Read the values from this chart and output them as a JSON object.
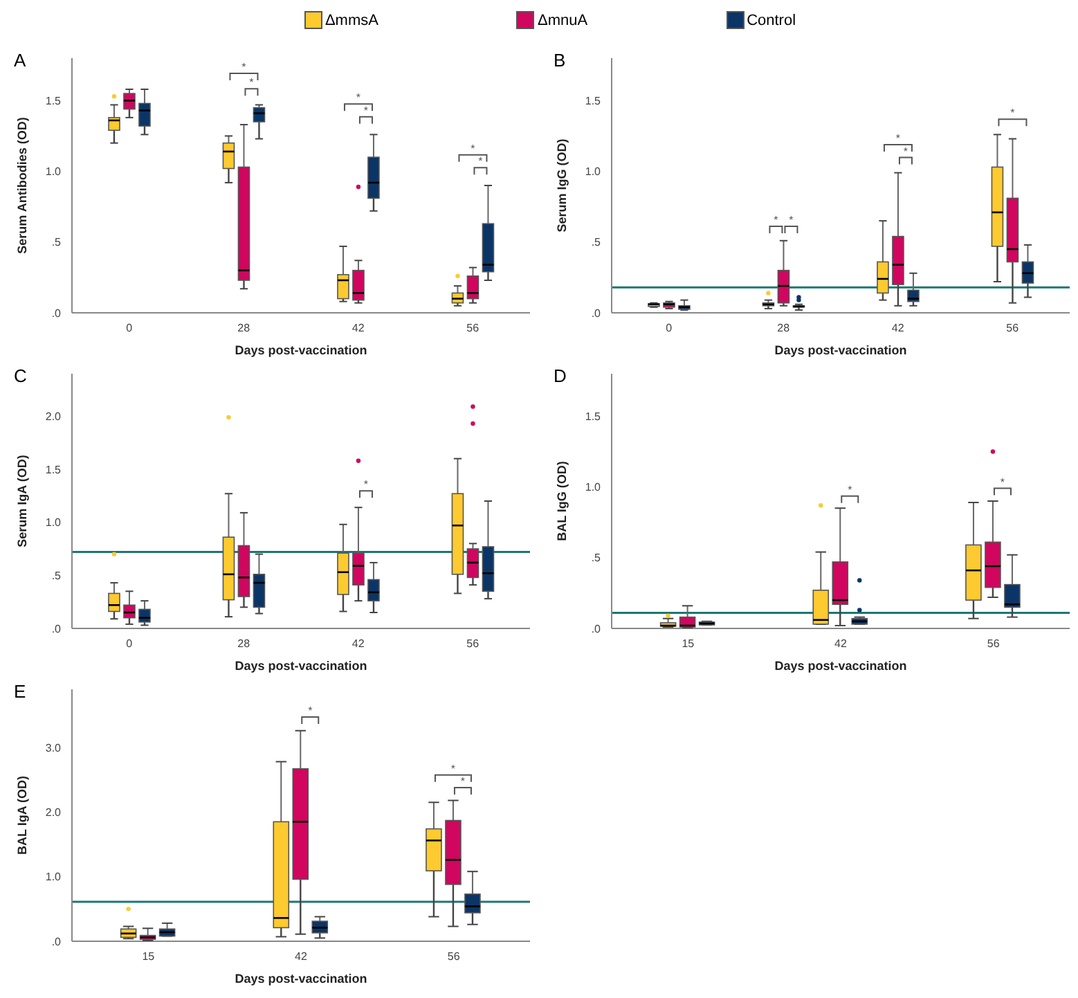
{
  "chart_data": [
    {
      "type": "box",
      "title": "A",
      "xlabel": "Days post-vaccination",
      "ylabel": "Serum Antibodies (OD)",
      "categories": [
        "0",
        "28",
        "42",
        "56"
      ],
      "ylim": [
        0,
        1.8
      ],
      "yticks": [
        {
          "value": 0,
          "label": ".0"
        },
        {
          "value": 0.5,
          "label": ".5"
        },
        {
          "value": 1,
          "label": "1.0"
        },
        {
          "value": 1.5,
          "label": "1.5"
        }
      ],
      "legend": "top",
      "series": [
        {
          "name": "ΔmmsA",
          "color": "#fdca2f",
          "boxes": [
            {
              "low": 1.2,
              "q1": 1.29,
              "median": 1.36,
              "q3": 1.38,
              "high": 1.47,
              "outliers": [
                1.53
              ]
            },
            {
              "low": 0.92,
              "q1": 1.02,
              "median": 1.14,
              "q3": 1.2,
              "high": 1.25
            },
            {
              "low": 0.08,
              "q1": 0.1,
              "median": 0.23,
              "q3": 0.27,
              "high": 0.47
            },
            {
              "low": 0.05,
              "q1": 0.07,
              "median": 0.1,
              "q3": 0.14,
              "high": 0.19,
              "outliers": [
                0.26
              ]
            }
          ]
        },
        {
          "name": "ΔmnuA",
          "color": "#d0065f",
          "boxes": [
            {
              "low": 1.38,
              "q1": 1.44,
              "median": 1.5,
              "q3": 1.55,
              "high": 1.58
            },
            {
              "low": 0.17,
              "q1": 0.23,
              "median": 0.3,
              "q3": 1.03,
              "high": 1.33
            },
            {
              "low": 0.07,
              "q1": 0.09,
              "median": 0.14,
              "q3": 0.3,
              "high": 0.37,
              "outliers": [
                0.89
              ]
            },
            {
              "low": 0.07,
              "q1": 0.1,
              "median": 0.14,
              "q3": 0.26,
              "high": 0.32
            }
          ]
        },
        {
          "name": "Control",
          "color": "#0b3566",
          "boxes": [
            {
              "low": 1.26,
              "q1": 1.32,
              "median": 1.43,
              "q3": 1.48,
              "high": 1.58
            },
            {
              "low": 1.23,
              "q1": 1.35,
              "median": 1.41,
              "q3": 1.45,
              "high": 1.47
            },
            {
              "low": 0.72,
              "q1": 0.81,
              "median": 0.92,
              "q3": 1.1,
              "high": 1.26
            },
            {
              "low": 0.23,
              "q1": 0.29,
              "median": 0.34,
              "q3": 0.63,
              "high": 0.9
            }
          ]
        }
      ],
      "annotations": [
        "*",
        "*",
        "*",
        "*",
        "*",
        "*"
      ]
    },
    {
      "type": "box",
      "title": "B",
      "xlabel": "Days post-vaccination",
      "ylabel": "Serum IgG (OD)",
      "categories": [
        "0",
        "28",
        "42",
        "56"
      ],
      "ylim": [
        0,
        1.8
      ],
      "yticks": [
        {
          "value": 0,
          "label": ".0"
        },
        {
          "value": 0.5,
          "label": ".5"
        },
        {
          "value": 1,
          "label": "1.0"
        },
        {
          "value": 1.5,
          "label": "1.5"
        }
      ],
      "series": [
        {
          "color": "#fdca2f",
          "boxes": [
            {
              "low": 0.04,
              "q1": 0.045,
              "median": 0.06,
              "q3": 0.065,
              "high": 0.07
            },
            {
              "low": 0.03,
              "q1": 0.05,
              "median": 0.06,
              "q3": 0.07,
              "high": 0.09,
              "outliers": [
                0.14
              ]
            },
            {
              "low": 0.09,
              "q1": 0.14,
              "median": 0.24,
              "q3": 0.36,
              "high": 0.65
            },
            {
              "low": 0.22,
              "q1": 0.47,
              "median": 0.71,
              "q3": 1.03,
              "high": 1.26
            }
          ]
        },
        {
          "color": "#d0065f",
          "boxes": [
            {
              "low": 0.03,
              "q1": 0.04,
              "median": 0.06,
              "q3": 0.07,
              "high": 0.08
            },
            {
              "low": 0.05,
              "q1": 0.07,
              "median": 0.19,
              "q3": 0.3,
              "high": 0.51
            },
            {
              "low": 0.05,
              "q1": 0.2,
              "median": 0.34,
              "q3": 0.54,
              "high": 0.99
            },
            {
              "low": 0.07,
              "q1": 0.36,
              "median": 0.45,
              "q3": 0.81,
              "high": 1.23
            }
          ]
        },
        {
          "color": "#0b3566",
          "boxes": [
            {
              "low": 0.02,
              "q1": 0.025,
              "median": 0.04,
              "q3": 0.05,
              "high": 0.09
            },
            {
              "low": 0.02,
              "q1": 0.04,
              "median": 0.045,
              "q3": 0.05,
              "high": 0.06,
              "outliers": [
                0.09,
                0.11
              ]
            },
            {
              "low": 0.05,
              "q1": 0.08,
              "median": 0.1,
              "q3": 0.16,
              "high": 0.28
            },
            {
              "low": 0.11,
              "q1": 0.21,
              "median": 0.28,
              "q3": 0.36,
              "high": 0.48
            }
          ]
        }
      ],
      "ref_lines": [
        {
          "axis": "y",
          "value": 0.18,
          "color": "#1b7873"
        }
      ],
      "annotations": [
        "*",
        "*",
        "*",
        "*",
        "*"
      ]
    },
    {
      "type": "box",
      "title": "C",
      "xlabel": "Days post-vaccination",
      "ylabel": "Serum IgA (OD)",
      "categories": [
        "0",
        "28",
        "42",
        "56"
      ],
      "ylim": [
        0,
        2.4
      ],
      "yticks": [
        {
          "value": 0,
          "label": ".0"
        },
        {
          "value": 0.5,
          "label": ".5"
        },
        {
          "value": 1,
          "label": "1.0"
        },
        {
          "value": 1.5,
          "label": "1.5"
        },
        {
          "value": 2,
          "label": "2.0"
        }
      ],
      "series": [
        {
          "color": "#fdca2f",
          "boxes": [
            {
              "low": 0.09,
              "q1": 0.16,
              "median": 0.22,
              "q3": 0.33,
              "high": 0.43,
              "outliers": [
                0.7
              ]
            },
            {
              "low": 0.11,
              "q1": 0.27,
              "median": 0.51,
              "q3": 0.86,
              "high": 1.27,
              "outliers": [
                1.99
              ]
            },
            {
              "low": 0.16,
              "q1": 0.32,
              "median": 0.53,
              "q3": 0.71,
              "high": 0.98
            },
            {
              "low": 0.33,
              "q1": 0.51,
              "median": 0.97,
              "q3": 1.27,
              "high": 1.6
            }
          ]
        },
        {
          "color": "#d0065f",
          "boxes": [
            {
              "low": 0.04,
              "q1": 0.1,
              "median": 0.15,
              "q3": 0.22,
              "high": 0.35
            },
            {
              "low": 0.2,
              "q1": 0.3,
              "median": 0.48,
              "q3": 0.78,
              "high": 1.09
            },
            {
              "low": 0.26,
              "q1": 0.41,
              "median": 0.59,
              "q3": 0.71,
              "high": 1.14,
              "outliers": [
                1.58
              ]
            },
            {
              "low": 0.41,
              "q1": 0.48,
              "median": 0.62,
              "q3": 0.75,
              "high": 0.8,
              "outliers": [
                1.93,
                2.09
              ]
            }
          ]
        },
        {
          "color": "#0b3566",
          "boxes": [
            {
              "low": 0.03,
              "q1": 0.06,
              "median": 0.1,
              "q3": 0.18,
              "high": 0.26
            },
            {
              "low": 0.14,
              "q1": 0.2,
              "median": 0.43,
              "q3": 0.51,
              "high": 0.7
            },
            {
              "low": 0.15,
              "q1": 0.26,
              "median": 0.34,
              "q3": 0.46,
              "high": 0.62
            },
            {
              "low": 0.28,
              "q1": 0.35,
              "median": 0.52,
              "q3": 0.77,
              "high": 1.2
            }
          ]
        }
      ],
      "ref_lines": [
        {
          "axis": "y",
          "value": 0.72,
          "color": "#1b7873"
        }
      ],
      "annotations": [
        "*"
      ]
    },
    {
      "type": "box",
      "title": "D",
      "xlabel": "Days post-vaccination",
      "ylabel": "BAL IgG (OD)",
      "categories": [
        "15",
        "42",
        "56"
      ],
      "ylim": [
        0,
        1.8
      ],
      "yticks": [
        {
          "value": 0,
          "label": ".0"
        },
        {
          "value": 0.5,
          "label": ".5"
        },
        {
          "value": 1,
          "label": "1.0"
        },
        {
          "value": 1.5,
          "label": "1.5"
        }
      ],
      "series": [
        {
          "color": "#fdca2f",
          "boxes": [
            {
              "low": 0.01,
              "q1": 0.015,
              "median": 0.02,
              "q3": 0.04,
              "high": 0.07,
              "outliers": [
                0.09
              ]
            },
            {
              "low": 0.03,
              "q1": 0.03,
              "median": 0.06,
              "q3": 0.27,
              "high": 0.54,
              "outliers": [
                0.87
              ]
            },
            {
              "low": 0.07,
              "q1": 0.2,
              "median": 0.41,
              "q3": 0.59,
              "high": 0.89
            }
          ]
        },
        {
          "color": "#d0065f",
          "boxes": [
            {
              "low": 0.005,
              "q1": 0.01,
              "median": 0.02,
              "q3": 0.08,
              "high": 0.16
            },
            {
              "low": 0.02,
              "q1": 0.17,
              "median": 0.2,
              "q3": 0.47,
              "high": 0.85
            },
            {
              "low": 0.22,
              "q1": 0.29,
              "median": 0.44,
              "q3": 0.61,
              "high": 0.9,
              "outliers": [
                1.25
              ]
            }
          ]
        },
        {
          "color": "#0b3566",
          "boxes": [
            {
              "low": 0.025,
              "q1": 0.025,
              "median": 0.035,
              "q3": 0.045,
              "high": 0.05
            },
            {
              "low": 0.03,
              "q1": 0.03,
              "median": 0.05,
              "q3": 0.07,
              "high": 0.08,
              "outliers": [
                0.13,
                0.34
              ]
            },
            {
              "low": 0.08,
              "q1": 0.15,
              "median": 0.17,
              "q3": 0.31,
              "high": 0.52
            }
          ]
        }
      ],
      "ref_lines": [
        {
          "axis": "y",
          "value": 0.11,
          "color": "#1b7873"
        }
      ],
      "annotations": [
        "*",
        "*"
      ]
    },
    {
      "type": "box",
      "title": "E",
      "xlabel": "Days post-vaccination",
      "ylabel": "BAL IgA (OD)",
      "categories": [
        "15",
        "42",
        "56"
      ],
      "ylim": [
        0,
        3.9
      ],
      "yticks": [
        {
          "value": 0,
          "label": ".0"
        },
        {
          "value": 1,
          "label": "1.0"
        },
        {
          "value": 2,
          "label": "2.0"
        },
        {
          "value": 3,
          "label": "3.0"
        }
      ],
      "series": [
        {
          "color": "#fdca2f",
          "boxes": [
            {
              "low": 0.04,
              "q1": 0.06,
              "median": 0.12,
              "q3": 0.19,
              "high": 0.23,
              "outliers": [
                0.5
              ]
            },
            {
              "low": 0.07,
              "q1": 0.21,
              "median": 0.36,
              "q3": 1.85,
              "high": 2.78
            },
            {
              "low": 0.38,
              "q1": 1.09,
              "median": 1.56,
              "q3": 1.74,
              "high": 2.15
            }
          ]
        },
        {
          "color": "#d0065f",
          "boxes": [
            {
              "low": 0.01,
              "q1": 0.03,
              "median": 0.06,
              "q3": 0.09,
              "high": 0.2
            },
            {
              "low": 0.11,
              "q1": 0.96,
              "median": 1.85,
              "q3": 2.67,
              "high": 3.26
            },
            {
              "low": 0.23,
              "q1": 0.88,
              "median": 1.26,
              "q3": 1.87,
              "high": 2.18
            }
          ]
        },
        {
          "color": "#0b3566",
          "boxes": [
            {
              "low": 0.08,
              "q1": 0.08,
              "median": 0.14,
              "q3": 0.19,
              "high": 0.28
            },
            {
              "low": 0.05,
              "q1": 0.13,
              "median": 0.21,
              "q3": 0.31,
              "high": 0.38
            },
            {
              "low": 0.26,
              "q1": 0.44,
              "median": 0.54,
              "q3": 0.73,
              "high": 1.08
            }
          ]
        }
      ],
      "ref_lines": [
        {
          "axis": "y",
          "value": 0.61,
          "color": "#1b7873"
        }
      ],
      "annotations": [
        "*",
        "*",
        "*"
      ]
    }
  ]
}
